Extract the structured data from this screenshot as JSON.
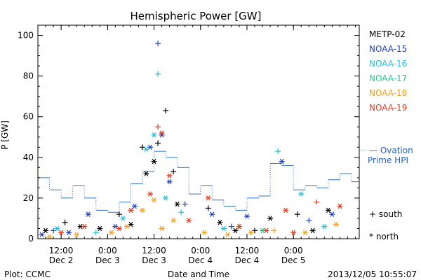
{
  "chart_data": {
    "type": "scatter",
    "title": "Hemispheric Power [GW]",
    "xlabel": "Date and Time",
    "ylabel": "P [GW]",
    "xlim": [
      "2013-12-02T06:00",
      "2013-12-05T17:00"
    ],
    "ylim": [
      0,
      105
    ],
    "yticks": [
      0,
      20,
      40,
      60,
      80,
      100
    ],
    "xticks": [
      {
        "time": "2013-12-02T12:00",
        "line1": "12:00",
        "line2": "Dec 2"
      },
      {
        "time": "2013-12-03T00:00",
        "line1": "0:00",
        "line2": "Dec 3"
      },
      {
        "time": "2013-12-03T12:00",
        "line1": "12:00",
        "line2": "Dec 3"
      },
      {
        "time": "2013-12-04T00:00",
        "line1": "0:00",
        "line2": "Dec 4"
      },
      {
        "time": "2013-12-04T12:00",
        "line1": "12:00",
        "line2": "Dec 4"
      },
      {
        "time": "2013-12-05T00:00",
        "line1": "0:00",
        "line2": "Dec 5"
      }
    ],
    "footer_left": "Plot: CCMC",
    "footer_right": "2013/12/05 10:55:07",
    "legend": {
      "placement": "right",
      "satellites": [
        {
          "name": "METP-02",
          "color": "#000000"
        },
        {
          "name": "NOAA-15",
          "color": "#1f3fbf"
        },
        {
          "name": "NOAA-16",
          "color": "#22bfd8"
        },
        {
          "name": "NOAA-17",
          "color": "#22d08a"
        },
        {
          "name": "NOAA-18",
          "color": "#f0a020"
        },
        {
          "name": "NOAA-19",
          "color": "#e83a1a"
        }
      ],
      "ovation_line1": "— Ovation",
      "ovation_line2": "Prime HPI",
      "south_label": "+ south",
      "north_label": "* north"
    },
    "ovation": {
      "name": "Ovation Prime HPI",
      "color": "#3070d0",
      "x": [
        "2013-12-02T06:00",
        "2013-12-02T09:00",
        "2013-12-02T12:00",
        "2013-12-02T15:00",
        "2013-12-02T18:00",
        "2013-12-02T21:00",
        "2013-12-03T00:00",
        "2013-12-03T03:00",
        "2013-12-03T06:00",
        "2013-12-03T09:00",
        "2013-12-03T12:00",
        "2013-12-03T15:00",
        "2013-12-03T18:00",
        "2013-12-03T21:00",
        "2013-12-04T00:00",
        "2013-12-04T03:00",
        "2013-12-04T06:00",
        "2013-12-04T09:00",
        "2013-12-04T12:00",
        "2013-12-04T15:00",
        "2013-12-04T18:00",
        "2013-12-04T21:00",
        "2013-12-05T00:00",
        "2013-12-05T03:00",
        "2013-12-05T06:00",
        "2013-12-05T09:00",
        "2013-12-05T12:00",
        "2013-12-05T15:00"
      ],
      "values": [
        30,
        24,
        20,
        26,
        20,
        14,
        13,
        18,
        27,
        33,
        43,
        40,
        35,
        22,
        26,
        19,
        16,
        14,
        20,
        21,
        37,
        36,
        24,
        26,
        25,
        29,
        32,
        28
      ]
    },
    "series": [
      {
        "name": "METP-02",
        "color": "#000000",
        "points": [
          {
            "t": "2013-12-02T08:00",
            "y": 4,
            "h": "north"
          },
          {
            "t": "2013-12-02T13:00",
            "y": 8,
            "h": "south"
          },
          {
            "t": "2013-12-02T17:00",
            "y": 6,
            "h": "north"
          },
          {
            "t": "2013-12-02T22:00",
            "y": 5,
            "h": "north"
          },
          {
            "t": "2013-12-03T03:00",
            "y": 12,
            "h": "south"
          },
          {
            "t": "2013-12-03T06:00",
            "y": 7,
            "h": "north"
          },
          {
            "t": "2013-12-03T09:00",
            "y": 45,
            "h": "south"
          },
          {
            "t": "2013-12-03T10:00",
            "y": 32,
            "h": "north"
          },
          {
            "t": "2013-12-03T12:00",
            "y": 38,
            "h": "north"
          },
          {
            "t": "2013-12-03T13:00",
            "y": 47,
            "h": "south"
          },
          {
            "t": "2013-12-03T15:00",
            "y": 63,
            "h": "south"
          },
          {
            "t": "2013-12-03T17:00",
            "y": 33,
            "h": "south"
          },
          {
            "t": "2013-12-03T18:00",
            "y": 17,
            "h": "north"
          },
          {
            "t": "2013-12-04T02:00",
            "y": 15,
            "h": "south"
          },
          {
            "t": "2013-12-04T05:00",
            "y": 8,
            "h": "north"
          },
          {
            "t": "2013-12-04T09:00",
            "y": 4,
            "h": "north"
          },
          {
            "t": "2013-12-04T14:00",
            "y": 4,
            "h": "south"
          },
          {
            "t": "2013-12-04T18:00",
            "y": 10,
            "h": "north"
          },
          {
            "t": "2013-12-05T01:00",
            "y": 12,
            "h": "south"
          },
          {
            "t": "2013-12-05T05:00",
            "y": 4,
            "h": "north"
          },
          {
            "t": "2013-12-05T09:00",
            "y": 14,
            "h": "north"
          }
        ]
      },
      {
        "name": "NOAA-15",
        "color": "#1f3fbf",
        "points": [
          {
            "t": "2013-12-02T07:00",
            "y": 2,
            "h": "north"
          },
          {
            "t": "2013-12-02T10:00",
            "y": 4,
            "h": "south"
          },
          {
            "t": "2013-12-02T14:00",
            "y": 3,
            "h": "north"
          },
          {
            "t": "2013-12-02T19:00",
            "y": 12,
            "h": "north"
          },
          {
            "t": "2013-12-03T02:00",
            "y": 6,
            "h": "north"
          },
          {
            "t": "2013-12-03T07:00",
            "y": 16,
            "h": "north"
          },
          {
            "t": "2013-12-03T11:00",
            "y": 45,
            "h": "north"
          },
          {
            "t": "2013-12-03T13:00",
            "y": 96,
            "h": "south"
          },
          {
            "t": "2013-12-03T14:00",
            "y": 51,
            "h": "north"
          },
          {
            "t": "2013-12-03T16:00",
            "y": 28,
            "h": "north"
          },
          {
            "t": "2013-12-03T20:00",
            "y": 17,
            "h": "south"
          },
          {
            "t": "2013-12-04T03:00",
            "y": 12,
            "h": "north"
          },
          {
            "t": "2013-12-04T08:00",
            "y": 6,
            "h": "south"
          },
          {
            "t": "2013-12-04T12:00",
            "y": 11,
            "h": "north"
          },
          {
            "t": "2013-12-04T21:00",
            "y": 38,
            "h": "north"
          },
          {
            "t": "2013-12-05T04:00",
            "y": 9,
            "h": "south"
          },
          {
            "t": "2013-12-05T10:00",
            "y": 12,
            "h": "north"
          }
        ]
      },
      {
        "name": "NOAA-16",
        "color": "#22bfd8",
        "points": [
          {
            "t": "2013-12-02T11:00",
            "y": 5,
            "h": "north"
          },
          {
            "t": "2013-12-02T21:00",
            "y": 3,
            "h": "south"
          },
          {
            "t": "2013-12-03T04:00",
            "y": 10,
            "h": "north"
          },
          {
            "t": "2013-12-03T10:00",
            "y": 44,
            "h": "north"
          },
          {
            "t": "2013-12-03T12:00",
            "y": 51,
            "h": "north"
          },
          {
            "t": "2013-12-03T13:00",
            "y": 81,
            "h": "south"
          },
          {
            "t": "2013-12-03T15:00",
            "y": 20,
            "h": "north"
          },
          {
            "t": "2013-12-03T19:00",
            "y": 13,
            "h": "south"
          },
          {
            "t": "2013-12-04T06:00",
            "y": 5,
            "h": "north"
          },
          {
            "t": "2013-12-04T20:00",
            "y": 43,
            "h": "south"
          },
          {
            "t": "2013-12-05T02:00",
            "y": 22,
            "h": "north"
          },
          {
            "t": "2013-12-05T08:00",
            "y": 6,
            "h": "north"
          }
        ]
      },
      {
        "name": "NOAA-17",
        "color": "#22d08a",
        "points": [
          {
            "t": "2013-12-04T10:00",
            "y": 6,
            "h": "south"
          },
          {
            "t": "2013-12-04T16:00",
            "y": 4,
            "h": "north"
          }
        ]
      },
      {
        "name": "NOAA-18",
        "color": "#f0a020",
        "points": [
          {
            "t": "2013-12-02T09:00",
            "y": 1,
            "h": "north"
          },
          {
            "t": "2013-12-02T16:00",
            "y": 2,
            "h": "north"
          },
          {
            "t": "2013-12-03T01:00",
            "y": 3,
            "h": "north"
          },
          {
            "t": "2013-12-03T05:00",
            "y": 6,
            "h": "north"
          },
          {
            "t": "2013-12-03T09:00",
            "y": 14,
            "h": "north"
          },
          {
            "t": "2013-12-03T12:00",
            "y": 19,
            "h": "north"
          },
          {
            "t": "2013-12-03T14:00",
            "y": 5,
            "h": "north"
          },
          {
            "t": "2013-12-03T17:00",
            "y": 9,
            "h": "north"
          },
          {
            "t": "2013-12-04T01:00",
            "y": 3,
            "h": "north"
          },
          {
            "t": "2013-12-04T07:00",
            "y": 2,
            "h": "north"
          },
          {
            "t": "2013-12-04T13:00",
            "y": 3,
            "h": "north"
          },
          {
            "t": "2013-12-04T19:00",
            "y": 4,
            "h": "south"
          },
          {
            "t": "2013-12-05T03:00",
            "y": 3,
            "h": "north"
          },
          {
            "t": "2013-12-05T11:00",
            "y": 7,
            "h": "north"
          }
        ]
      },
      {
        "name": "NOAA-19",
        "color": "#e83a1a",
        "points": [
          {
            "t": "2013-12-02T12:00",
            "y": 3,
            "h": "north"
          },
          {
            "t": "2013-12-02T18:00",
            "y": 6,
            "h": "north"
          },
          {
            "t": "2013-12-03T03:00",
            "y": 5,
            "h": "north"
          },
          {
            "t": "2013-12-03T06:00",
            "y": 14,
            "h": "north"
          },
          {
            "t": "2013-12-03T11:00",
            "y": 22,
            "h": "north"
          },
          {
            "t": "2013-12-03T13:00",
            "y": 55,
            "h": "south"
          },
          {
            "t": "2013-12-03T14:00",
            "y": 52,
            "h": "north"
          },
          {
            "t": "2013-12-03T16:00",
            "y": 31,
            "h": "north"
          },
          {
            "t": "2013-12-03T21:00",
            "y": 9,
            "h": "north"
          },
          {
            "t": "2013-12-04T02:00",
            "y": 20,
            "h": "north"
          },
          {
            "t": "2013-12-04T10:00",
            "y": 6,
            "h": "north"
          },
          {
            "t": "2013-12-04T17:00",
            "y": 4,
            "h": "north"
          },
          {
            "t": "2013-12-04T22:00",
            "y": 14,
            "h": "north"
          },
          {
            "t": "2013-12-05T00:00",
            "y": 3,
            "h": "north"
          },
          {
            "t": "2013-12-05T06:00",
            "y": 18,
            "h": "south"
          },
          {
            "t": "2013-12-05T12:00",
            "y": 16,
            "h": "north"
          }
        ]
      }
    ]
  }
}
